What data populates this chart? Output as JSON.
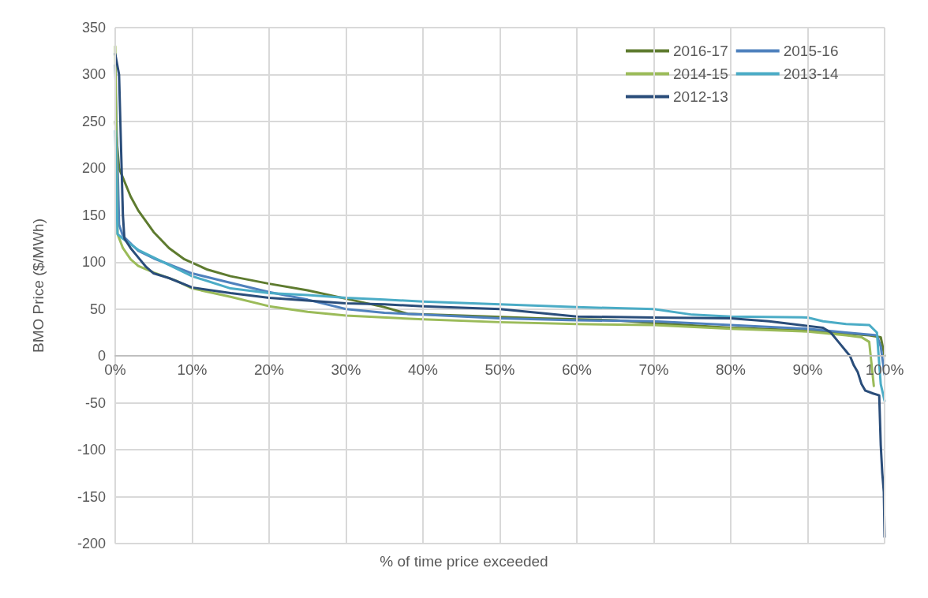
{
  "chart_data": {
    "type": "line",
    "xlabel": "% of time price exceeded",
    "ylabel": "BMO Price ($/MWh)",
    "xlim": [
      0,
      100
    ],
    "xticks": [
      {
        "value": 0,
        "label": "0%"
      },
      {
        "value": 10,
        "label": "10%"
      },
      {
        "value": 20,
        "label": "20%"
      },
      {
        "value": 30,
        "label": "30%"
      },
      {
        "value": 40,
        "label": "40%"
      },
      {
        "value": 50,
        "label": "50%"
      },
      {
        "value": 60,
        "label": "60%"
      },
      {
        "value": 70,
        "label": "70%"
      },
      {
        "value": 80,
        "label": "80%"
      },
      {
        "value": 90,
        "label": "90%"
      },
      {
        "value": 100,
        "label": "100%"
      }
    ],
    "ylim": [
      -200,
      350
    ],
    "yticks": [
      -200,
      -150,
      -100,
      -50,
      0,
      50,
      100,
      150,
      200,
      250,
      300,
      350
    ],
    "grid": true,
    "legend": "top right",
    "marker": "none",
    "line_style": "solid",
    "series": [
      {
        "name": "2016-17",
        "color": "#5e7b2f",
        "x": [
          0,
          0.5,
          1,
          2,
          3,
          5,
          7,
          9,
          12,
          15,
          20,
          25,
          30,
          35,
          38,
          45,
          55,
          65,
          70,
          80,
          90,
          95,
          98,
          99.5,
          100
        ],
        "values": [
          250,
          200,
          190,
          170,
          155,
          132,
          115,
          103,
          92,
          85,
          77,
          70,
          61,
          52,
          45,
          43,
          40,
          38,
          35,
          30,
          27,
          24,
          22,
          20,
          0
        ]
      },
      {
        "name": "2015-16",
        "color": "#4f81bd",
        "x": [
          0,
          0.5,
          1,
          3,
          5,
          10,
          15,
          20,
          25,
          30,
          35,
          40,
          50,
          60,
          70,
          80,
          90,
          95,
          99,
          99.5,
          100
        ],
        "values": [
          310,
          140,
          128,
          112,
          104,
          88,
          78,
          68,
          60,
          50,
          46,
          44,
          40,
          38,
          37,
          33,
          29,
          25,
          22,
          10,
          -20
        ]
      },
      {
        "name": "2014-15",
        "color": "#9bbb59",
        "x": [
          0,
          0.3,
          1,
          2,
          3,
          5,
          8,
          10,
          15,
          20,
          25,
          30,
          40,
          50,
          60,
          70,
          80,
          90,
          95,
          97,
          98,
          98.6
        ],
        "values": [
          330,
          130,
          115,
          103,
          96,
          89,
          80,
          72,
          63,
          53,
          47,
          43,
          39,
          36,
          34,
          33,
          29,
          26,
          22,
          20,
          15,
          -32
        ]
      },
      {
        "name": "2013-14",
        "color": "#4bacc6",
        "x": [
          0,
          0.3,
          1,
          3,
          5,
          10,
          15,
          20,
          25,
          30,
          35,
          40,
          50,
          60,
          70,
          75,
          80,
          90,
          92,
          95,
          98,
          99,
          99.5,
          100
        ],
        "values": [
          240,
          130,
          125,
          113,
          105,
          85,
          72,
          67,
          65,
          62,
          60,
          58,
          55,
          52,
          50,
          44,
          42,
          41,
          37,
          34,
          33,
          25,
          -30,
          -48
        ]
      },
      {
        "name": "2012-13",
        "color": "#2a4d7a",
        "x": [
          0,
          0.5,
          1,
          1.2,
          2,
          3,
          4,
          5,
          7,
          10,
          15,
          20,
          25,
          30,
          35,
          40,
          50,
          55,
          60,
          70,
          80,
          85,
          90,
          92,
          93,
          94,
          95,
          95.5,
          96,
          96.5,
          97,
          97.5,
          98.5,
          99.3,
          99.5,
          99.7,
          99.9,
          100
        ],
        "values": [
          322,
          300,
          150,
          125,
          115,
          105,
          95,
          88,
          83,
          73,
          67,
          62,
          59,
          56,
          55,
          53,
          50,
          46,
          42,
          41,
          40,
          37,
          32,
          30,
          25,
          15,
          5,
          0,
          -10,
          -17,
          -30,
          -37,
          -40,
          -42,
          -95,
          -125,
          -145,
          -193
        ]
      }
    ]
  }
}
